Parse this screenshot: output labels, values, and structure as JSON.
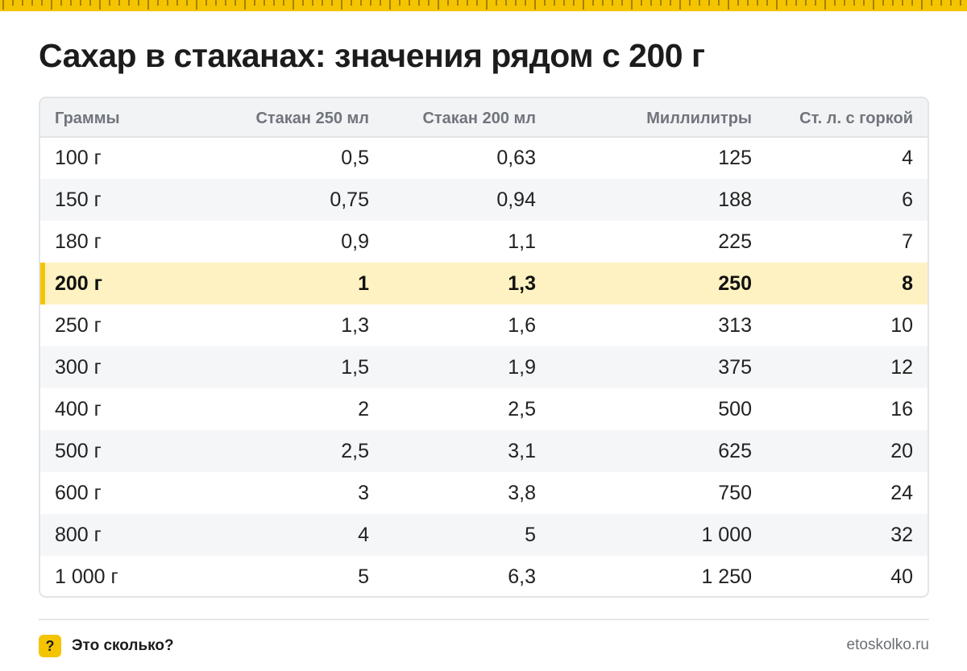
{
  "title": "Сахар в стаканах: значения рядом с 200 г",
  "table": {
    "headers": [
      "Граммы",
      "Стакан 250 мл",
      "Стакан 200 мл",
      "Миллилитры",
      "Ст. л. с горкой"
    ],
    "rows": [
      [
        "100 г",
        "0,5",
        "0,63",
        "125",
        "4"
      ],
      [
        "150 г",
        "0,75",
        "0,94",
        "188",
        "6"
      ],
      [
        "180 г",
        "0,9",
        "1,1",
        "225",
        "7"
      ],
      [
        "200 г",
        "1",
        "1,3",
        "250",
        "8"
      ],
      [
        "250 г",
        "1,3",
        "1,6",
        "313",
        "10"
      ],
      [
        "300 г",
        "1,5",
        "1,9",
        "375",
        "12"
      ],
      [
        "400 г",
        "2",
        "2,5",
        "500",
        "16"
      ],
      [
        "500 г",
        "2,5",
        "3,1",
        "625",
        "20"
      ],
      [
        "600 г",
        "3",
        "3,8",
        "750",
        "24"
      ],
      [
        "800 г",
        "4",
        "5",
        "1 000",
        "32"
      ],
      [
        "1 000 г",
        "5",
        "6,3",
        "1 250",
        "40"
      ]
    ],
    "highlighted_row": 3
  },
  "footer": {
    "badge_icon": "?",
    "brand": "Это сколько?",
    "site": "etoskolko.ru"
  },
  "colors": {
    "accent": "#f5c400",
    "highlight_row": "#fff2c2",
    "header_bg": "#f2f3f5",
    "zebra": "#f5f6f8"
  }
}
